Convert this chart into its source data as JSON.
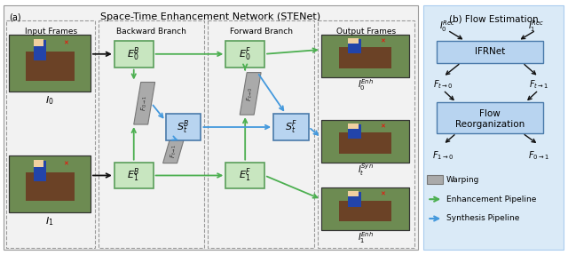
{
  "fig_width": 6.4,
  "fig_height": 2.87,
  "dpi": 100,
  "white_bg": "#ffffff",
  "light_gray_bg": "#f2f2f2",
  "light_blue_bg": "#daeaf7",
  "green_box_fill": "#c8e6c0",
  "green_box_edge": "#5a9e5a",
  "blue_box_fill": "#b8d4f0",
  "blue_box_edge": "#4a7aaa",
  "gray_warp_fill": "#aaaaaa",
  "gray_warp_edge": "#777777",
  "green_arrow_color": "#4caf50",
  "blue_arrow_color": "#4499dd",
  "black_color": "#111111",
  "dashed_edge": "#999999",
  "title_a": "Space-Time Enhancement Network (STENet)",
  "title_b": "(b) Flow Estimation",
  "label_a": "(a)",
  "col_labels": [
    "Input Frames",
    "Backward Branch",
    "Forward Branch",
    "Output Frames"
  ],
  "legend_items": [
    "Warping",
    "Enhancement Pipeline",
    "Synthesis Pipeline"
  ]
}
